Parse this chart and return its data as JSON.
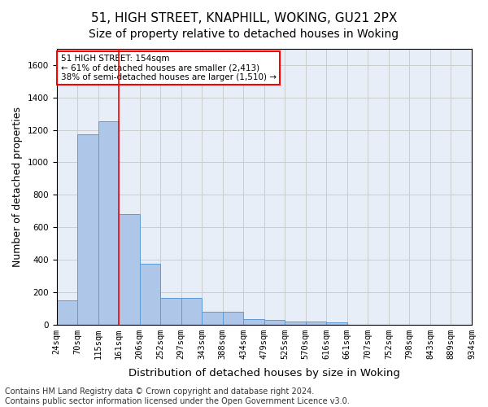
{
  "title1": "51, HIGH STREET, KNAPHILL, WOKING, GU21 2PX",
  "title2": "Size of property relative to detached houses in Woking",
  "xlabel": "Distribution of detached houses by size in Woking",
  "ylabel": "Number of detached properties",
  "footer1": "Contains HM Land Registry data © Crown copyright and database right 2024.",
  "footer2": "Contains public sector information licensed under the Open Government Licence v3.0.",
  "annotation_line1": "51 HIGH STREET: 154sqm",
  "annotation_line2": "← 61% of detached houses are smaller (2,413)",
  "annotation_line3": "38% of semi-detached houses are larger (1,510) →",
  "bar_values": [
    150,
    1175,
    1255,
    680,
    375,
    165,
    165,
    80,
    80,
    35,
    30,
    20,
    20,
    12,
    0,
    0,
    0,
    0,
    0,
    0
  ],
  "categories": [
    "24sqm",
    "70sqm",
    "115sqm",
    "161sqm",
    "206sqm",
    "252sqm",
    "297sqm",
    "343sqm",
    "388sqm",
    "434sqm",
    "479sqm",
    "525sqm",
    "570sqm",
    "616sqm",
    "661sqm",
    "707sqm",
    "752sqm",
    "798sqm",
    "843sqm",
    "889sqm",
    "934sqm"
  ],
  "bar_color": "#aec6e8",
  "bar_edge_color": "#5b9bd5",
  "red_line_x": 3,
  "ylim": [
    0,
    1700
  ],
  "yticks": [
    0,
    200,
    400,
    600,
    800,
    1000,
    1200,
    1400,
    1600
  ],
  "grid_color": "#cccccc",
  "bg_color": "#e8eef7",
  "annotation_box_color": "white",
  "annotation_box_edge": "red",
  "title_fontsize": 11,
  "subtitle_fontsize": 10,
  "axis_label_fontsize": 9,
  "tick_fontsize": 7.5,
  "footer_fontsize": 7
}
